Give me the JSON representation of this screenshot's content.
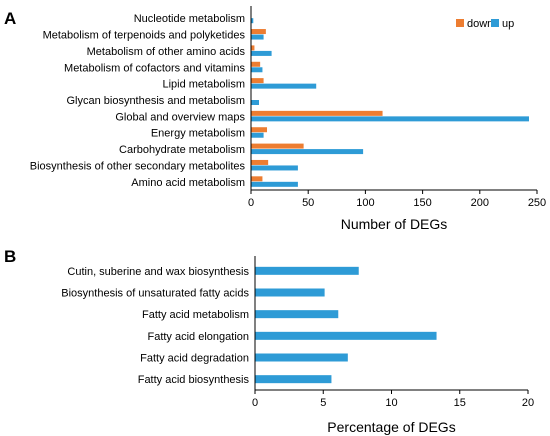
{
  "panels": [
    {
      "label": "A"
    },
    {
      "label": "B"
    }
  ],
  "chart_data": [
    {
      "type": "bar",
      "orientation": "horizontal",
      "categories": [
        "Nucleotide metabolism",
        "Metabolism of terpenoids and polyketides",
        "Metabolism of other amino acids",
        "Metabolism of cofactors and vitamins",
        "Lipid metabolism",
        "Glycan biosynthesis and metabolism",
        "Global and overview maps",
        "Energy metabolism",
        "Carbohydrate metabolism",
        "Biosynthesis of other secondary metabolites",
        "Amino acid metabolism"
      ],
      "series": [
        {
          "name": "down",
          "color": "#ED7D31",
          "values": [
            0,
            13,
            3,
            8,
            11,
            0,
            115,
            14,
            46,
            15,
            10
          ]
        },
        {
          "name": "up",
          "color": "#2E9BD6",
          "values": [
            2,
            11,
            18,
            10,
            57,
            7,
            243,
            11,
            98,
            41,
            41
          ]
        }
      ],
      "xlabel": "Number of DEGs",
      "ylabel": "",
      "xlim": [
        0,
        250
      ],
      "ticks": [
        "0",
        "50",
        "100",
        "150",
        "200",
        "250"
      ],
      "legend": "top-right",
      "grid": false
    },
    {
      "type": "bar",
      "orientation": "horizontal",
      "categories": [
        "Cutin, suberine and wax biosynthesis",
        "Biosynthesis of unsaturated fatty acids",
        "Fatty acid metabolism",
        "Fatty acid elongation",
        "Fatty acid degradation",
        "Fatty acid biosynthesis"
      ],
      "series": [
        {
          "color": "#2E9BD6",
          "values": [
            7.6,
            5.1,
            6.1,
            13.3,
            6.8,
            5.6
          ]
        }
      ],
      "xlabel": "Percentage of DEGs",
      "ylabel": "",
      "xlim": [
        0,
        20
      ],
      "ticks": [
        "0",
        "5",
        "10",
        "15",
        "20"
      ],
      "grid": false
    }
  ]
}
